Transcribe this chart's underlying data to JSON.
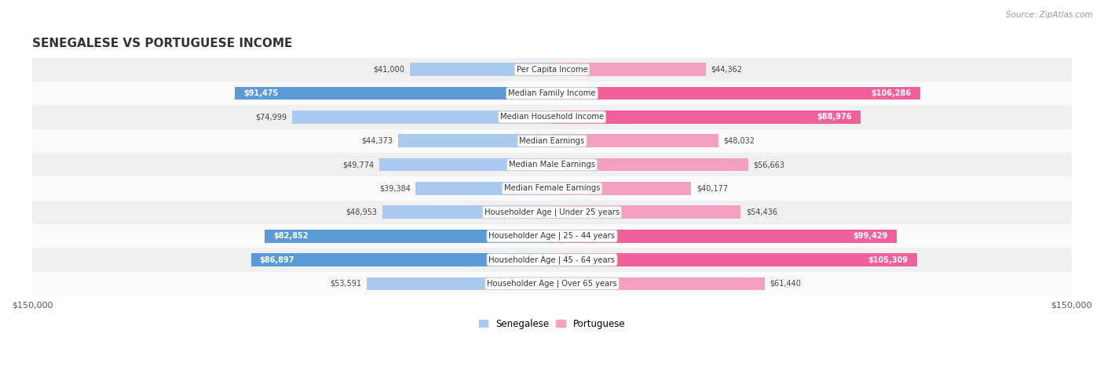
{
  "title": "SENEGALESE VS PORTUGUESE INCOME",
  "source": "Source: ZipAtlas.com",
  "categories": [
    "Per Capita Income",
    "Median Family Income",
    "Median Household Income",
    "Median Earnings",
    "Median Male Earnings",
    "Median Female Earnings",
    "Householder Age | Under 25 years",
    "Householder Age | 25 - 44 years",
    "Householder Age | 45 - 64 years",
    "Householder Age | Over 65 years"
  ],
  "senegalese": [
    41000,
    91475,
    74999,
    44373,
    49774,
    39384,
    48953,
    82852,
    86897,
    53591
  ],
  "portuguese": [
    44362,
    106286,
    88976,
    48032,
    56663,
    40177,
    54436,
    99429,
    105309,
    61440
  ],
  "senegalese_labels": [
    "$41,000",
    "$91,475",
    "$74,999",
    "$44,373",
    "$49,774",
    "$39,384",
    "$48,953",
    "$82,852",
    "$86,897",
    "$53,591"
  ],
  "portuguese_labels": [
    "$44,362",
    "$106,286",
    "$88,976",
    "$48,032",
    "$56,663",
    "$40,177",
    "$54,436",
    "$99,429",
    "$105,309",
    "$61,440"
  ],
  "color_senegalese_light": "#aac9f0",
  "color_senegalese_dark": "#5b9bd5",
  "color_portuguese_light": "#f5a0c0",
  "color_portuguese_dark": "#f0609a",
  "max_value": 150000,
  "bg_even": "#f0f0f0",
  "bg_odd": "#fafafa",
  "legend_senegalese": "Senegalese",
  "legend_portuguese": "Portuguese",
  "threshold_dark": 80000
}
